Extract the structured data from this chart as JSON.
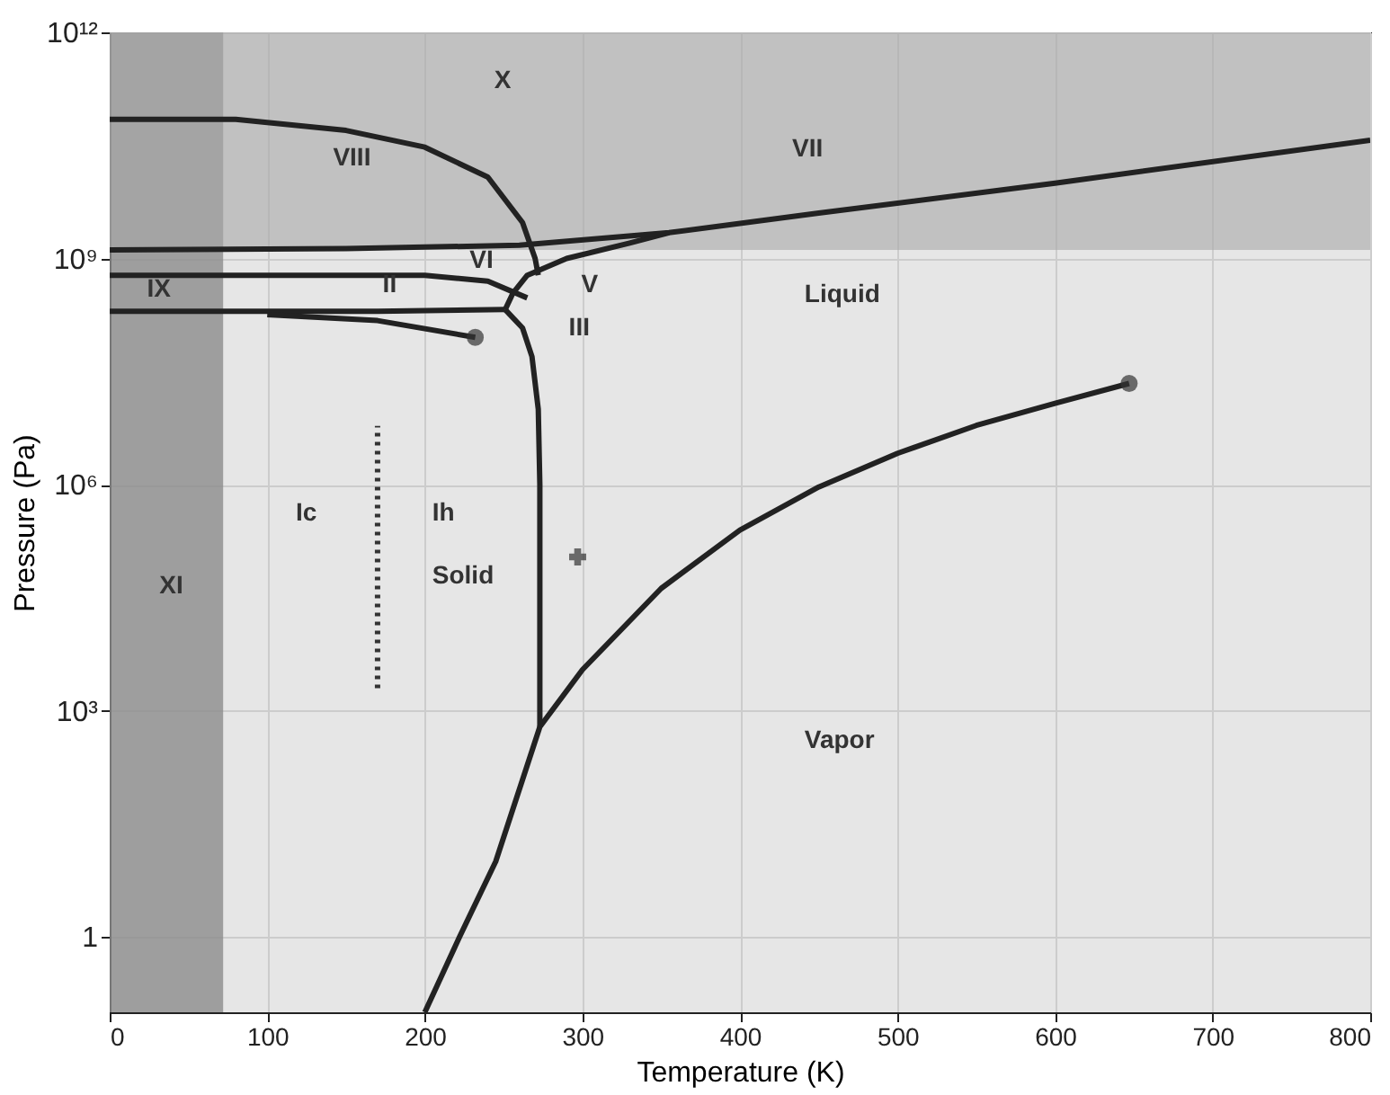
{
  "chart_data": {
    "type": "line",
    "xlabel": "Temperature (K)",
    "ylabel": "Pressure (Pa)",
    "log": "y",
    "grid": true,
    "xlim": [
      0,
      800
    ],
    "xticks": [
      0,
      100,
      200,
      300,
      400,
      500,
      600,
      700,
      800
    ],
    "ylim": [
      0.1,
      1000000000000
    ],
    "yticks": [
      {
        "value": 1,
        "label": "1"
      },
      {
        "value": 1000,
        "label": "10³"
      },
      {
        "value": 1000000,
        "label": "10⁶"
      },
      {
        "value": 1000000000,
        "label": "10⁹"
      },
      {
        "value": 1000000000000,
        "label": "10¹²"
      }
    ],
    "bands": [
      {
        "axis": "x",
        "from": 0,
        "to": 72,
        "color": "#8c8c8c"
      },
      {
        "axis": "y",
        "from": 1300000000,
        "to": 1000000000000,
        "color": "#a8a8a8"
      }
    ],
    "series": [
      {
        "color": "#222222",
        "line_style": "solid",
        "x": [
          200,
          222,
          245,
          273,
          300,
          350,
          400,
          450,
          500,
          550,
          600,
          647
        ],
        "values": [
          0.1,
          1,
          10,
          611,
          3500,
          42000,
          250000,
          930000,
          2600000,
          6100000,
          12000000,
          22000000
        ]
      },
      {
        "type": "line",
        "color": "#222222",
        "line_style": "solid",
        "x": [
          273,
          273,
          272,
          268,
          262,
          251
        ],
        "values": [
          611,
          1000000,
          10000000,
          50000000,
          120000000,
          210000000
        ]
      },
      {
        "type": "line",
        "color": "#222222",
        "line_style": "solid",
        "x": [
          0,
          170,
          251
        ],
        "values": [
          200000000,
          200000000,
          210000000
        ]
      },
      {
        "type": "line",
        "color": "#222222",
        "line_style": "solid",
        "x": [
          100,
          170,
          232
        ],
        "values": [
          180000000,
          150000000,
          90000000
        ]
      },
      {
        "type": "line",
        "color": "#222222",
        "line_style": "solid",
        "x": [
          0,
          200,
          240,
          265
        ],
        "values": [
          600000000,
          600000000,
          500000000,
          300000000
        ]
      },
      {
        "type": "line",
        "color": "#222222",
        "line_style": "solid",
        "x": [
          251,
          256,
          265,
          290,
          330,
          355
        ],
        "values": [
          210000000,
          350000000,
          600000000,
          1000000000,
          1600000000,
          2200000000
        ]
      },
      {
        "type": "line",
        "color": "#222222",
        "line_style": "solid",
        "x": [
          0,
          150,
          260,
          355,
          450,
          600,
          800
        ],
        "values": [
          1300000000,
          1350000000,
          1500000000,
          2200000000,
          4000000000,
          10000000000,
          37000000000
        ]
      },
      {
        "type": "line",
        "color": "#222222",
        "line_style": "solid",
        "x": [
          0,
          80,
          150,
          200,
          240,
          262,
          270,
          272
        ],
        "values": [
          70000000000,
          70000000000,
          50000000000,
          30000000000,
          12000000000,
          3000000000,
          1000000000,
          600000000
        ]
      },
      {
        "type": "line",
        "color": "#333333",
        "line_style": "dotted",
        "x": [
          170,
          170
        ],
        "values": [
          2000,
          6000000
        ]
      },
      {
        "type": "scatter",
        "color": "#333333",
        "marker": "circle",
        "x": [
          232,
          647
        ],
        "values": [
          90000000,
          22000000
        ]
      },
      {
        "type": "scatter",
        "color": "#333333",
        "marker": "cross",
        "x": [
          297
        ],
        "values": [
          110000
        ]
      }
    ],
    "annotations": [
      "X",
      "VIII",
      "VII",
      "VI",
      "V",
      "III",
      "II",
      "IX",
      "Liquid",
      "Ic",
      "Ih",
      "Solid",
      "XI",
      "Vapor"
    ]
  }
}
